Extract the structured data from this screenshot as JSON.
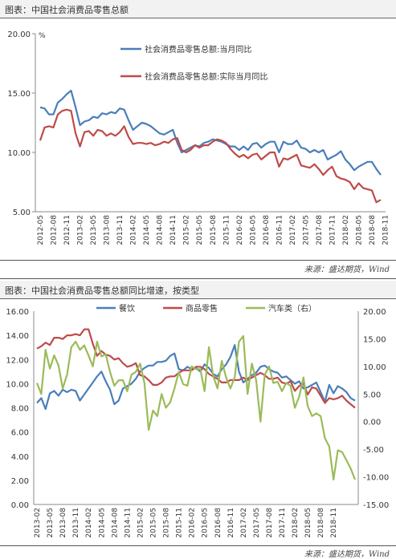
{
  "figure1": {
    "header": "图表：中国社会消费品零售总额",
    "source": "来源：盛达期货，Wind"
  },
  "figure2": {
    "header": "图表：中国社会消费品零售总额同比增速，按类型",
    "source": "来源：盛达期货，Wind"
  },
  "chart_data": [
    {
      "type": "line",
      "title": "",
      "unit": "%",
      "ylim": [
        5,
        20
      ],
      "yticks": [
        "20.00",
        "15.00",
        "10.00",
        "5.00"
      ],
      "xticks": [
        "2012-05",
        "2012-08",
        "2012-11",
        "2013-02",
        "2013-05",
        "2013-08",
        "2013-11",
        "2014-02",
        "2014-05",
        "2014-08",
        "2014-11",
        "2015-02",
        "2015-05",
        "2015-08",
        "2015-11",
        "2016-02",
        "2016-05",
        "2016-08",
        "2016-11",
        "2017-02",
        "2017-05",
        "2017-08",
        "2017-11",
        "2018-02",
        "2018-05",
        "2018-08",
        "2018-11"
      ],
      "legend_position": "top-right",
      "series": [
        {
          "name": "社会消费品零售总额:当月同比",
          "color": "#4a7ebb",
          "values": [
            13.8,
            13.7,
            13.2,
            13.2,
            14.2,
            14.5,
            14.9,
            15.2,
            13.8,
            12.3,
            12.6,
            12.7,
            13.0,
            12.9,
            13.3,
            13.2,
            13.4,
            13.3,
            13.7,
            13.6,
            12.7,
            11.9,
            12.2,
            12.5,
            12.4,
            12.2,
            11.9,
            11.6,
            11.5,
            11.7,
            11.9,
            10.8,
            10.0,
            10.2,
            10.4,
            10.6,
            10.5,
            10.8,
            10.9,
            11.1,
            11.0,
            10.9,
            10.7,
            10.5,
            10.5,
            10.2,
            10.5,
            10.2,
            10.7,
            10.8,
            10.4,
            10.7,
            10.9,
            10.9,
            10.0,
            10.9,
            10.7,
            10.7,
            11.0,
            10.4,
            10.3,
            10.0,
            10.2,
            10.0,
            10.2,
            9.4,
            9.6,
            9.8,
            10.1,
            9.4,
            9.0,
            8.5,
            8.8,
            9.0,
            9.2,
            9.2,
            8.6,
            8.1
          ]
        },
        {
          "name": "社会消费品零售总额:实际当月同比",
          "color": "#be4b48",
          "values": [
            11.0,
            12.1,
            12.2,
            12.1,
            13.2,
            13.5,
            13.6,
            13.5,
            11.6,
            10.5,
            11.7,
            11.8,
            11.4,
            11.9,
            11.8,
            11.4,
            11.6,
            11.4,
            11.7,
            12.2,
            11.3,
            10.7,
            10.8,
            10.8,
            10.7,
            10.8,
            10.6,
            10.7,
            10.9,
            10.8,
            11.1,
            11.2,
            10.2,
            10.0,
            10.2,
            10.6,
            10.4,
            10.6,
            10.6,
            10.9,
            11.1,
            11.0,
            10.8,
            10.3,
            9.9,
            9.6,
            9.8,
            9.5,
            9.8,
            9.9,
            9.4,
            9.7,
            10.0,
            10.0,
            8.8,
            9.5,
            9.4,
            9.6,
            9.8,
            8.9,
            8.8,
            8.7,
            9.0,
            8.6,
            8.1,
            8.5,
            8.8,
            8.0,
            7.8,
            7.7,
            7.5,
            6.9,
            7.4,
            7.0,
            6.9,
            6.8,
            5.8,
            6.0
          ]
        }
      ]
    },
    {
      "type": "line",
      "title": "",
      "ylim": [
        0,
        16
      ],
      "y2lim": [
        -15,
        20
      ],
      "yticks": [
        "16.00",
        "14.00",
        "12.00",
        "10.00",
        "8.00",
        "6.00",
        "4.00",
        "2.00",
        "0.00"
      ],
      "y2ticks": [
        "20.00",
        "15.00",
        "10.00",
        "5.00",
        "0.00",
        "-5.00",
        "-10.00",
        "-15.00"
      ],
      "xticks": [
        "2013-02",
        "2013-05",
        "2013-08",
        "2013-11",
        "2014-02",
        "2014-05",
        "2014-08",
        "2014-11",
        "2015-02",
        "2015-05",
        "2015-08",
        "2015-11",
        "2016-02",
        "2016-05",
        "2016-08",
        "2016-11",
        "2017-02",
        "2017-05",
        "2017-08",
        "2017-11",
        "2018-02",
        "2018-05",
        "2018-08",
        "2018-11"
      ],
      "legend_position": "top",
      "series": [
        {
          "name": "餐饮",
          "color": "#4a7ebb",
          "axis": "left",
          "values": [
            8.4,
            8.8,
            7.9,
            9.2,
            9.4,
            9.0,
            9.5,
            9.3,
            9.5,
            9.4,
            8.6,
            9.1,
            9.6,
            10.1,
            10.6,
            11.0,
            10.2,
            9.5,
            8.3,
            8.6,
            9.6,
            9.8,
            10.0,
            10.4,
            11.0,
            11.3,
            11.5,
            11.5,
            11.8,
            11.8,
            11.9,
            12.3,
            12.5,
            11.2,
            11.1,
            11.4,
            11.2,
            11.3,
            11.0,
            11.6,
            11.3,
            10.8,
            10.6,
            11.2,
            11.6,
            12.2,
            13.2,
            11.0,
            10.1,
            10.4,
            10.7,
            10.9,
            11.4,
            11.5,
            11.2,
            11.0,
            10.9,
            10.5,
            10.6,
            10.3,
            10.0,
            10.2,
            9.6,
            9.7,
            9.9,
            10.1,
            9.3,
            8.5,
            9.9,
            9.2,
            9.8,
            9.6,
            9.3,
            8.8,
            8.6
          ]
        },
        {
          "name": "商品零售",
          "color": "#be4b48",
          "axis": "left",
          "values": [
            12.9,
            13.1,
            13.4,
            13.2,
            13.8,
            13.8,
            13.7,
            14.0,
            14.0,
            14.1,
            14.0,
            14.5,
            14.5,
            13.3,
            12.3,
            12.7,
            12.4,
            12.3,
            12.0,
            12.1,
            11.7,
            11.4,
            11.5,
            11.7,
            10.7,
            10.6,
            10.3,
            9.9,
            9.9,
            10.1,
            10.5,
            10.6,
            10.6,
            10.9,
            11.1,
            11.1,
            11.1,
            11.4,
            11.4,
            11.2,
            10.8,
            10.6,
            10.4,
            10.1,
            10.1,
            10.3,
            10.3,
            10.3,
            10.5,
            10.3,
            10.5,
            10.7,
            10.9,
            10.7,
            10.4,
            10.4,
            10.5,
            10.1,
            10.0,
            10.2,
            9.4,
            9.8,
            10.0,
            9.1,
            9.7,
            9.6,
            9.0,
            8.4,
            8.8,
            8.7,
            8.8,
            9.0,
            8.6,
            8.3,
            8.0
          ]
        },
        {
          "name": "汽车类（右）",
          "color": "#9bbb59",
          "axis": "right",
          "values": [
            7.0,
            5.0,
            13.0,
            9.6,
            12.0,
            10.2,
            6.0,
            8.5,
            13.5,
            14.5,
            13.0,
            13.8,
            12.0,
            10.0,
            14.5,
            11.8,
            12.2,
            9.0,
            6.5,
            7.5,
            7.5,
            5.5,
            8.5,
            9.0,
            10.5,
            7.0,
            -1.5,
            2.0,
            1.0,
            5.0,
            2.5,
            3.5,
            6.0,
            9.0,
            6.8,
            6.5,
            10.0,
            9.5,
            9.5,
            5.5,
            13.5,
            8.3,
            6.0,
            11.0,
            8.0,
            6.0,
            8.0,
            14.5,
            15.5,
            5.0,
            10.5,
            7.5,
            0.0,
            8.5,
            10.0,
            7.0,
            7.2,
            5.5,
            7.0,
            6.5,
            2.5,
            4.5,
            8.0,
            2.8,
            1.0,
            1.5,
            1.0,
            -3.0,
            -4.5,
            -10.5,
            -5.2,
            -5.5,
            -7.0,
            -8.5,
            -10.5
          ]
        }
      ]
    }
  ]
}
